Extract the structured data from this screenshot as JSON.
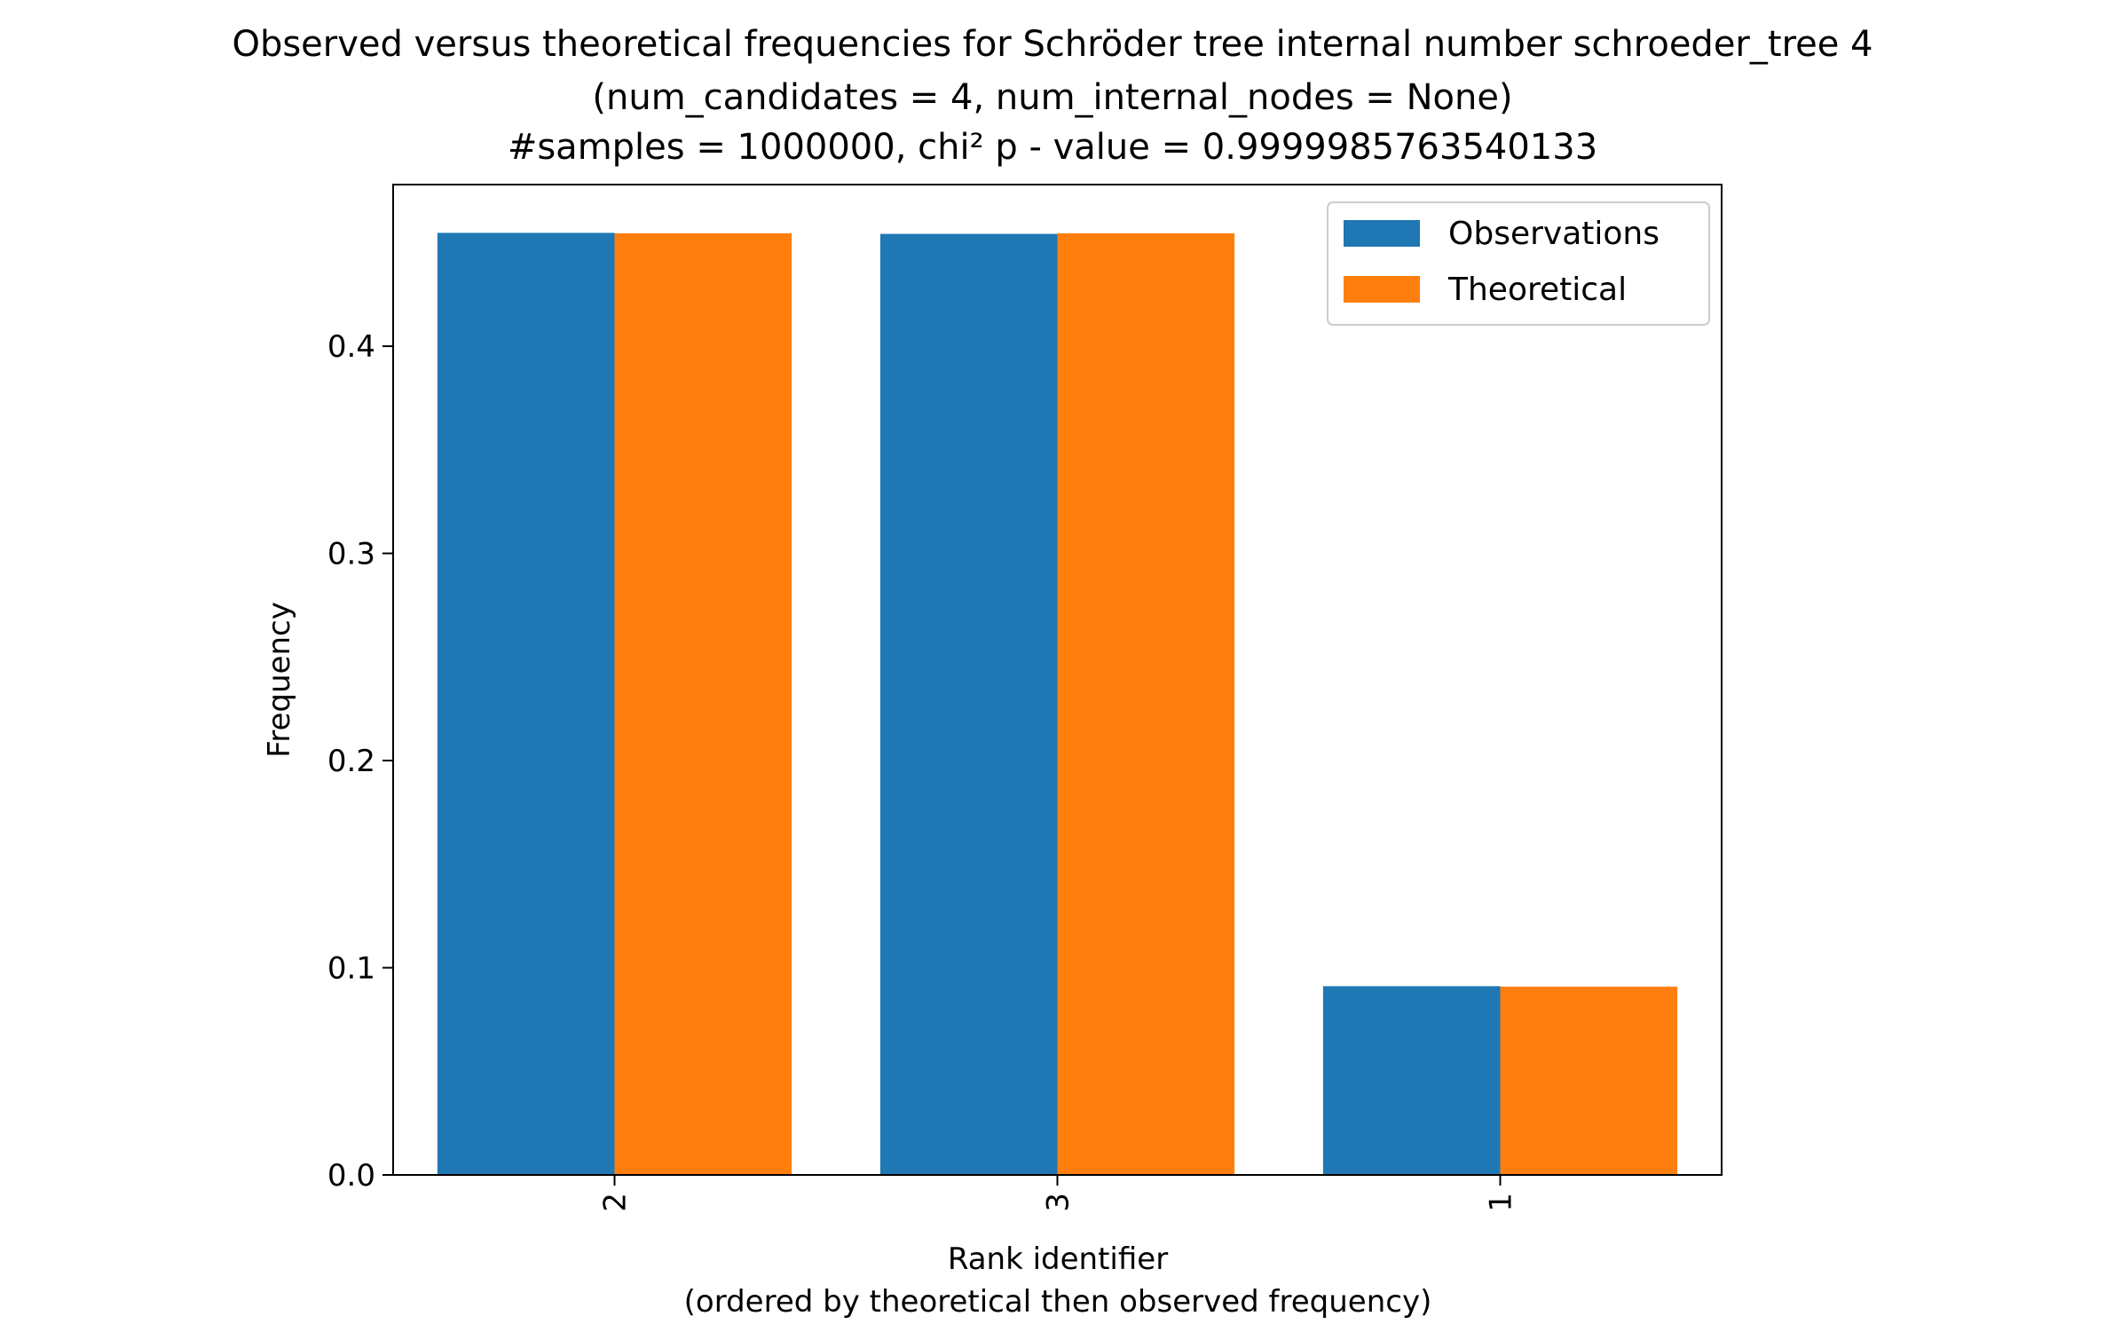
{
  "chart_data": {
    "type": "bar",
    "title_lines": [
      "Observed versus theoretical frequencies for Schröder tree internal number schroeder_tree 4",
      "(num_candidates = 4, num_internal_nodes = None)",
      "#samples = 1000000, chi² p - value = 0.9999985763540133"
    ],
    "xlabel_lines": [
      "Rank identifier",
      "(ordered by theoretical then observed frequency)"
    ],
    "ylabel": "Frequency",
    "categories": [
      "2",
      "3",
      "1"
    ],
    "series": [
      {
        "name": "Observations",
        "color": "#1f77b4",
        "values": [
          0.4547,
          0.4542,
          0.0911
        ]
      },
      {
        "name": "Theoretical",
        "color": "#ff7f0e",
        "values": [
          0.4545,
          0.4545,
          0.0909
        ]
      }
    ],
    "ylim": [
      0,
      0.478
    ],
    "yticks": [
      0.0,
      0.1,
      0.2,
      0.3,
      0.4
    ],
    "ytick_labels": [
      "0.0",
      "0.1",
      "0.2",
      "0.3",
      "0.4"
    ],
    "xtick_rotation": "vertical",
    "legend": "top-right",
    "grid": false
  }
}
